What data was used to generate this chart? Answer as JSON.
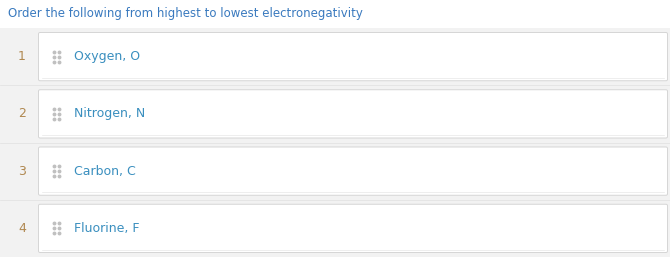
{
  "title": "Order the following from highest to lowest electronegativity",
  "title_color": "#3a7abf",
  "title_fontsize": 8.5,
  "items": [
    {
      "rank": "1",
      "label": "Oxygen, O"
    },
    {
      "rank": "2",
      "label": "Nitrogen, N"
    },
    {
      "rank": "3",
      "label": "Carbon, C"
    },
    {
      "rank": "4",
      "label": "Fluorine, F"
    }
  ],
  "item_label_color": "#3a8fbf",
  "rank_color": "#b08850",
  "drag_icon_color": "#c0c0c0",
  "bg_outer_color": "#ffffff",
  "bg_row_color": "#f2f2f2",
  "card_bg_color": "#ffffff",
  "card_border_color": "#d5d5d5",
  "figwidth": 6.7,
  "figheight": 2.57,
  "dpi": 100
}
